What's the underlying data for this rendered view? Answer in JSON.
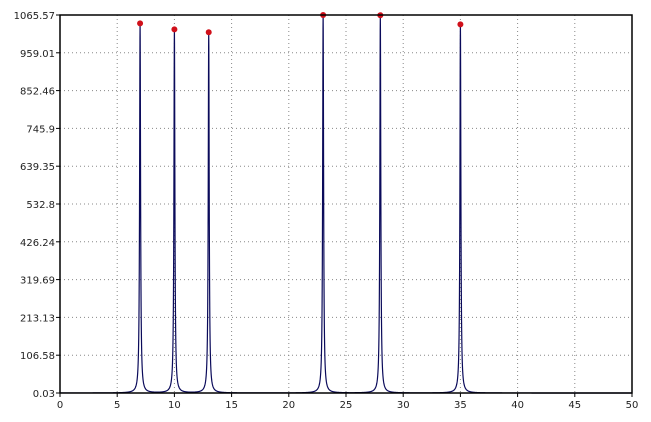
{
  "chart_data": {
    "type": "line",
    "title": "",
    "xlabel": "",
    "ylabel": "",
    "xlim": [
      0,
      50
    ],
    "ylim": [
      0.03,
      1065.57
    ],
    "x_ticks": [
      "0",
      "5",
      "10",
      "15",
      "20",
      "25",
      "30",
      "35",
      "40",
      "45",
      "50"
    ],
    "y_ticks": [
      "0.03",
      "106.58",
      "213.13",
      "319.69",
      "426.24",
      "532.8",
      "639.35",
      "745.9",
      "852.46",
      "959.01",
      "1065.57"
    ],
    "grid": true,
    "line_color": "#0a0a5a",
    "marker_color": "#d0101a",
    "peaks": [
      {
        "x": 7.0,
        "y": 1042
      },
      {
        "x": 10.0,
        "y": 1025
      },
      {
        "x": 13.0,
        "y": 1017
      },
      {
        "x": 23.0,
        "y": 1065.57
      },
      {
        "x": 28.0,
        "y": 1065
      },
      {
        "x": 35.0,
        "y": 1039
      }
    ]
  }
}
